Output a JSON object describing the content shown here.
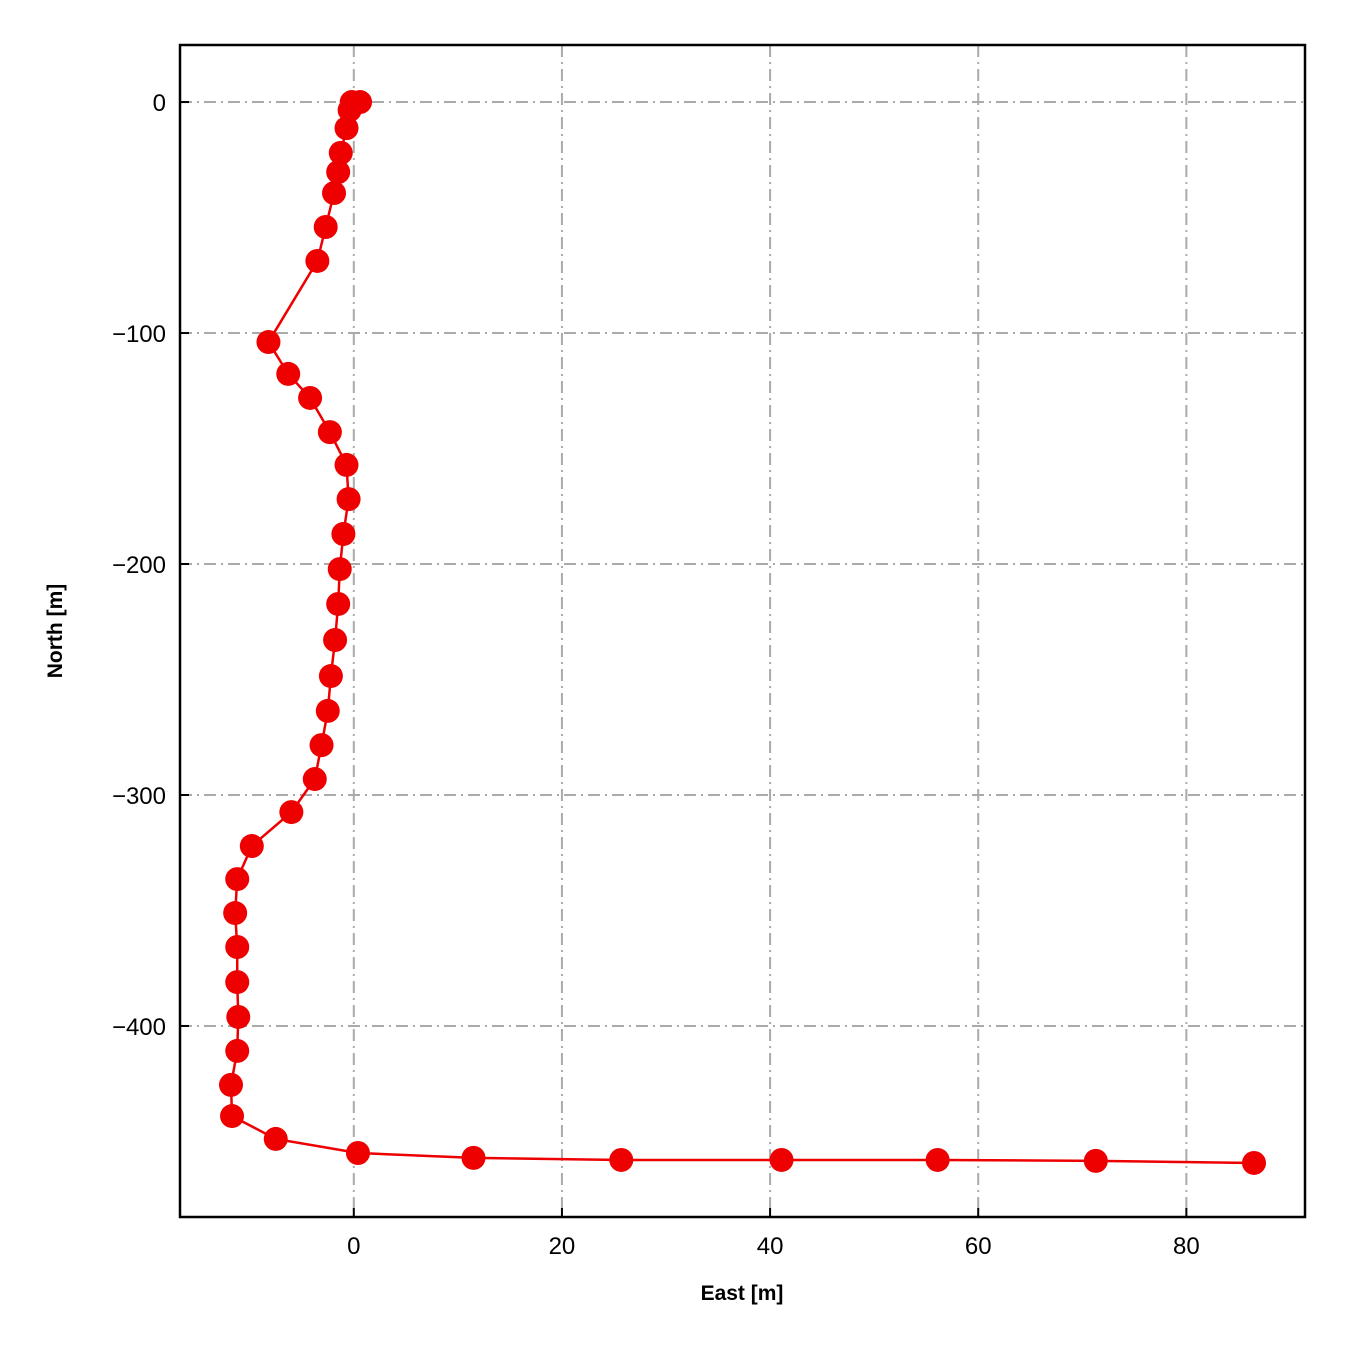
{
  "chart_data": {
    "type": "line",
    "x_label": "East [m]",
    "y_label": "North [m]",
    "x": [
      0.6,
      -0.2,
      -0.4,
      -0.7,
      -1.25,
      -1.5,
      -1.9,
      -2.7,
      -3.5,
      -8.2,
      -6.3,
      -4.2,
      -2.3,
      -0.7,
      -0.5,
      -1.0,
      -1.35,
      -1.5,
      -1.8,
      -2.2,
      -2.5,
      -3.1,
      -3.75,
      -6.0,
      -9.8,
      -11.2,
      -11.4,
      -11.2,
      -11.2,
      -11.1,
      -11.2,
      -11.8,
      -11.7,
      -7.5,
      0.4,
      11.5,
      25.7,
      41.1,
      56.1,
      71.3,
      86.5
    ],
    "series": [
      {
        "color": "#ee0000",
        "values": [
          0,
          0,
          -3.5,
          -11.3,
          -22,
          -30.3,
          -39.4,
          -54.1,
          -68.8,
          -103.9,
          -117.7,
          -128.1,
          -142.9,
          -157.1,
          -171.9,
          -187.0,
          -202.2,
          -217.3,
          -232.9,
          -248.5,
          -263.6,
          -278.4,
          -293.1,
          -307.4,
          -322.1,
          -336.4,
          -351.1,
          -365.8,
          -381.0,
          -396.1,
          -410.8,
          -425.5,
          -439.0,
          -448.9,
          -455.0,
          -457.1,
          -458.0,
          -458.0,
          -458.0,
          -458.4,
          -459.3
        ]
      }
    ],
    "xlim": [
      -16.7,
      91.4
    ],
    "ylim": [
      -482.7,
      24.7
    ],
    "xticks": [
      0,
      20,
      40,
      60,
      80
    ],
    "yticks": [
      {
        "value": -400,
        "label": "−400"
      },
      {
        "value": -300,
        "label": "−300"
      },
      {
        "value": -200,
        "label": "−200"
      },
      {
        "value": -100,
        "label": "−100"
      },
      0
    ],
    "grid": true
  }
}
